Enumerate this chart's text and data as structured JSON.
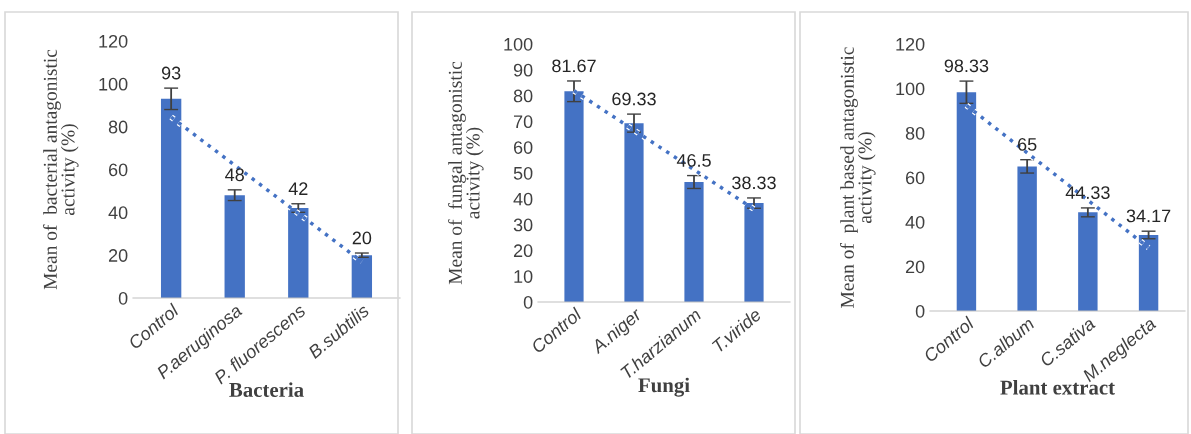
{
  "chart_data": [
    {
      "type": "bar",
      "xlabel": "Bacteria",
      "ylabel": "Mean of  bacterial antagonistic\nactivity (%)",
      "categories": [
        "Control",
        "P.aeruginosa",
        "P. fluorescens",
        "B.subtilis"
      ],
      "ylim": [
        0,
        120
      ],
      "yticks": [
        0,
        20,
        40,
        60,
        80,
        100,
        120
      ],
      "series": [
        {
          "color": "#4472c4",
          "values": [
            93,
            48,
            42,
            20
          ],
          "errors": [
            5,
            2.5,
            2,
            1
          ],
          "value_labels": [
            "93",
            "48",
            "42",
            "20"
          ]
        },
        {
          "type": "line",
          "color": "#4472c4",
          "line_style": "dotted",
          "values": [
            84.5,
            62,
            39.5,
            17
          ]
        }
      ]
    },
    {
      "type": "bar",
      "xlabel": "Fungi",
      "ylabel": "Mean of  fungal antagonistic\nactivity (%)",
      "categories": [
        "Control",
        "A.niger",
        "T.harzianum",
        "T.viride"
      ],
      "ylim": [
        0,
        100
      ],
      "yticks": [
        0,
        10,
        20,
        30,
        40,
        50,
        60,
        70,
        80,
        90,
        100
      ],
      "series": [
        {
          "color": "#4472c4",
          "values": [
            81.67,
            69.33,
            46.5,
            38.33
          ],
          "errors": [
            4,
            3.5,
            2.5,
            2
          ],
          "value_labels": [
            "81.67",
            "69.33",
            "46.5",
            "38.33"
          ]
        },
        {
          "type": "line",
          "color": "#4472c4",
          "line_style": "dotted",
          "values": [
            81.9,
            66.6,
            51.3,
            36
          ]
        }
      ]
    },
    {
      "type": "bar",
      "xlabel": "Plant extract",
      "ylabel": "Mean of  plant based antagonistic\nactivity (%)",
      "categories": [
        "Control",
        "C.album",
        "C.sativa",
        "M.neglecta"
      ],
      "ylim": [
        0,
        120
      ],
      "yticks": [
        0,
        20,
        40,
        60,
        80,
        100,
        120
      ],
      "series": [
        {
          "color": "#4472c4",
          "values": [
            98.33,
            65,
            44.33,
            34.17
          ],
          "errors": [
            5,
            3,
            2,
            1.7
          ],
          "value_labels": [
            "98.33",
            "65",
            "44.33",
            "34.17"
          ]
        },
        {
          "type": "line",
          "color": "#4472c4",
          "line_style": "dotted",
          "values": [
            92.4,
            71.1,
            49.8,
            28.5
          ]
        }
      ]
    }
  ]
}
